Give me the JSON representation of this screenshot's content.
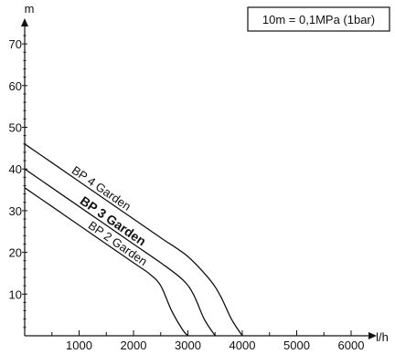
{
  "chart_data": {
    "type": "line",
    "xlabel": "l/h",
    "ylabel": "m",
    "xlim": [
      0,
      6500
    ],
    "ylim": [
      0,
      76
    ],
    "x_ticks": [
      1000,
      2000,
      3000,
      4000,
      5000,
      6000
    ],
    "y_ticks": [
      10,
      20,
      30,
      40,
      50,
      60,
      70
    ],
    "x_minor_step": 500,
    "y_minor_step": 2,
    "grid": false,
    "note": "10m = 0,1MPa (1bar)",
    "series": [
      {
        "name": "BP 2 Garden",
        "bold": false,
        "x": [
          0,
          500,
          1000,
          1500,
          2000,
          2300,
          2500,
          2700,
          2900,
          3000
        ],
        "y": [
          35.5,
          31,
          26.5,
          22,
          17.5,
          14.8,
          12,
          6,
          1.5,
          0
        ]
      },
      {
        "name": "BP 3 Garden",
        "bold": true,
        "x": [
          0,
          500,
          1000,
          1500,
          2000,
          2500,
          2900,
          3100,
          3300,
          3500
        ],
        "y": [
          40,
          35.5,
          31,
          26.5,
          22,
          17.5,
          13.5,
          10,
          4,
          0
        ]
      },
      {
        "name": "BP 4 Garden",
        "bold": false,
        "x": [
          0,
          500,
          1000,
          1500,
          2000,
          2500,
          3000,
          3400,
          3600,
          3800,
          4000
        ],
        "y": [
          46,
          41.5,
          37,
          32.5,
          28,
          23.5,
          19,
          13.5,
          9.5,
          4,
          0
        ]
      }
    ]
  }
}
